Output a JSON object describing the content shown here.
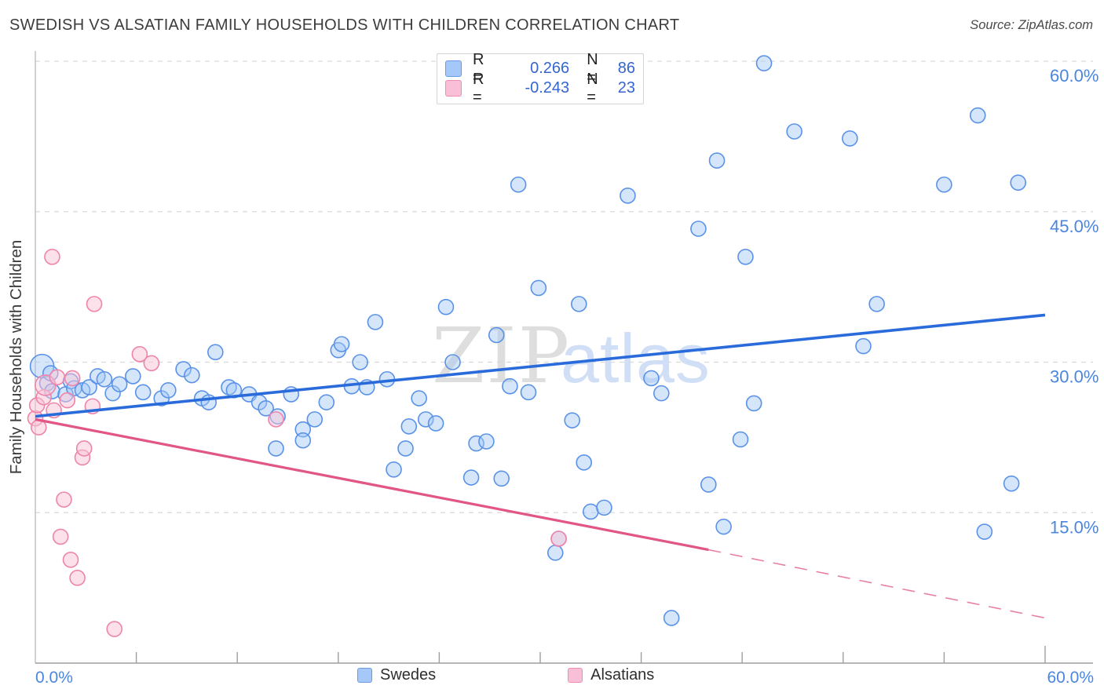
{
  "header": {
    "title": "SWEDISH VS ALSATIAN FAMILY HOUSEHOLDS WITH CHILDREN CORRELATION CHART",
    "source": "Source: ZipAtlas.com"
  },
  "correlation_legend": {
    "rows": [
      {
        "series": "Swedes",
        "r_label": "R =",
        "r_value": "0.266",
        "n_label": "N =",
        "n_value": "86"
      },
      {
        "series": "Alsatians",
        "r_label": "R =",
        "r_value": "-0.243",
        "n_label": "N =",
        "n_value": "23"
      }
    ]
  },
  "series_legend": {
    "items": [
      {
        "label": "Swedes"
      },
      {
        "label": "Alsatians"
      }
    ]
  },
  "watermark": {
    "part1": "ZIP",
    "part2": "atlas"
  },
  "colors": {
    "blue_stroke": "#5a92e8",
    "blue_fill": "rgba(162,199,246,0.45)",
    "blue_trend": "#2a6bdb",
    "pink_stroke": "#ef84ab",
    "pink_fill": "rgba(249,196,214,0.5)",
    "pink_trend": "#e25587",
    "grid": "#dadada",
    "axis": "#9e9e9e",
    "left_axis": "#c2c2c2",
    "tick_label": "#4a86e0",
    "watermark_gray": "#d9d9d9",
    "watermark_blue": "#c9daf5"
  },
  "chart_data": {
    "type": "scatter",
    "title": "Swedish vs Alsatian Family Households with Children",
    "ylabel": "Family Households with Children",
    "x_range": [
      0,
      60
    ],
    "y_range": [
      0,
      62
    ],
    "x_tick_step": 6,
    "grid": "horizontal-dashed",
    "legend_position": "bottom-center",
    "x_axis_labels": [
      {
        "value": 0,
        "label": "0.0%"
      },
      {
        "value": 60,
        "label": "60.0%"
      }
    ],
    "y_ticks": [
      {
        "value": 60,
        "label": "60.0%"
      },
      {
        "value": 45,
        "label": "45.0%"
      },
      {
        "value": 30,
        "label": "30.0%"
      },
      {
        "value": 15,
        "label": "15.0%"
      }
    ],
    "series": [
      {
        "name": "Swedes",
        "R": 0.266,
        "N": 86,
        "trend": {
          "x0": 0,
          "y0": 24.6,
          "x1": 60,
          "y1": 34.7,
          "style": "solid"
        },
        "points": [
          [
            0.4,
            29.6,
            15
          ],
          [
            0.7,
            27.9
          ],
          [
            0.9,
            28.9
          ],
          [
            1.0,
            27.1
          ],
          [
            1.8,
            26.8
          ],
          [
            2.1,
            28.1
          ],
          [
            2.3,
            27.4
          ],
          [
            2.8,
            27.2
          ],
          [
            3.2,
            27.5
          ],
          [
            3.7,
            28.6
          ],
          [
            4.1,
            28.3
          ],
          [
            4.6,
            26.9
          ],
          [
            5.0,
            27.8
          ],
          [
            5.8,
            28.6
          ],
          [
            6.4,
            27.0
          ],
          [
            7.5,
            26.4
          ],
          [
            7.9,
            27.2
          ],
          [
            8.8,
            29.3
          ],
          [
            9.3,
            28.7
          ],
          [
            9.9,
            26.4
          ],
          [
            10.3,
            26.0
          ],
          [
            10.7,
            31.0
          ],
          [
            11.5,
            27.5
          ],
          [
            11.8,
            27.2
          ],
          [
            12.7,
            26.8
          ],
          [
            13.3,
            26.0
          ],
          [
            13.7,
            25.4
          ],
          [
            14.3,
            21.4
          ],
          [
            14.4,
            24.6
          ],
          [
            15.2,
            26.8
          ],
          [
            15.9,
            23.3
          ],
          [
            15.9,
            22.2
          ],
          [
            16.6,
            24.3
          ],
          [
            17.3,
            26.0
          ],
          [
            18.0,
            31.2
          ],
          [
            18.2,
            31.8
          ],
          [
            18.8,
            27.6
          ],
          [
            19.3,
            30.0
          ],
          [
            19.7,
            27.5
          ],
          [
            20.2,
            34.0
          ],
          [
            20.9,
            28.3
          ],
          [
            21.3,
            19.3
          ],
          [
            22.0,
            21.4
          ],
          [
            22.2,
            23.6
          ],
          [
            22.8,
            26.4
          ],
          [
            23.2,
            24.3
          ],
          [
            23.8,
            23.9
          ],
          [
            24.4,
            35.5
          ],
          [
            24.8,
            30.0
          ],
          [
            25.9,
            18.5
          ],
          [
            26.2,
            21.9
          ],
          [
            26.8,
            22.1
          ],
          [
            27.4,
            32.7
          ],
          [
            27.7,
            18.4
          ],
          [
            28.2,
            27.6
          ],
          [
            28.7,
            47.7
          ],
          [
            29.3,
            27.0
          ],
          [
            29.9,
            37.4
          ],
          [
            30.9,
            11.0
          ],
          [
            31.1,
            12.4
          ],
          [
            31.9,
            24.2
          ],
          [
            32.3,
            35.8
          ],
          [
            32.6,
            20.0
          ],
          [
            33.0,
            15.1
          ],
          [
            33.8,
            15.5
          ],
          [
            35.2,
            46.6
          ],
          [
            36.6,
            28.4
          ],
          [
            37.2,
            26.9
          ],
          [
            37.8,
            4.5
          ],
          [
            39.4,
            43.3
          ],
          [
            40.0,
            17.8
          ],
          [
            40.5,
            50.1
          ],
          [
            40.9,
            13.6
          ],
          [
            41.9,
            22.3
          ],
          [
            42.2,
            40.5
          ],
          [
            42.7,
            25.9
          ],
          [
            43.3,
            59.8
          ],
          [
            45.1,
            53.0
          ],
          [
            48.4,
            52.3
          ],
          [
            49.2,
            31.6
          ],
          [
            50.0,
            35.8
          ],
          [
            54.0,
            47.7
          ],
          [
            56.0,
            54.6
          ],
          [
            56.4,
            13.1
          ],
          [
            58.0,
            17.9
          ],
          [
            58.4,
            47.9
          ]
        ]
      },
      {
        "name": "Alsatians",
        "R": -0.243,
        "N": 23,
        "trend": {
          "x0": 0,
          "y0": 24.3,
          "x1": 40,
          "y1": 11.3,
          "style": "solid",
          "dash_x1": 60,
          "dash_y1": 4.5
        },
        "points": [
          [
            0.0,
            24.4
          ],
          [
            0.1,
            25.7
          ],
          [
            0.2,
            23.5
          ],
          [
            0.5,
            26.5
          ],
          [
            0.6,
            27.7,
            13
          ],
          [
            1.0,
            40.5
          ],
          [
            1.1,
            25.2
          ],
          [
            1.3,
            28.5
          ],
          [
            1.5,
            12.6
          ],
          [
            1.7,
            16.3
          ],
          [
            1.9,
            26.2
          ],
          [
            2.1,
            10.3
          ],
          [
            2.2,
            28.4
          ],
          [
            2.5,
            8.5
          ],
          [
            2.8,
            20.5
          ],
          [
            2.9,
            21.4
          ],
          [
            3.4,
            25.6
          ],
          [
            3.5,
            35.8
          ],
          [
            4.7,
            3.4
          ],
          [
            6.2,
            30.8
          ],
          [
            6.9,
            29.9
          ],
          [
            14.3,
            24.3
          ],
          [
            31.1,
            12.4
          ]
        ]
      }
    ]
  }
}
